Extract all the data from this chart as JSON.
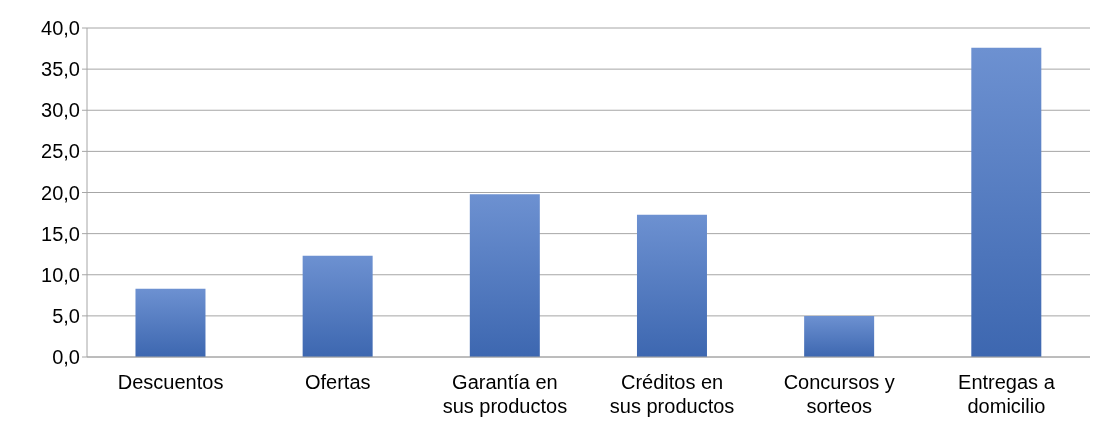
{
  "chart_data": {
    "type": "bar",
    "categories": [
      "Descuentos",
      "Ofertas",
      "Garantía en sus productos",
      "Créditos en sus productos",
      "Concursos y sorteos",
      "Entregas a domicilio"
    ],
    "values": [
      8.3,
      12.3,
      19.8,
      17.3,
      5.0,
      37.6
    ],
    "color": "#4472c4",
    "ylim": [
      0,
      40
    ],
    "yticks": [
      {
        "value": 0,
        "label": "0,0"
      },
      {
        "value": 5,
        "label": "5,0"
      },
      {
        "value": 10,
        "label": "10,0"
      },
      {
        "value": 15,
        "label": "15,0"
      },
      {
        "value": 20,
        "label": "20,0"
      },
      {
        "value": 25,
        "label": "25,0"
      },
      {
        "value": 30,
        "label": "30,0"
      },
      {
        "value": 35,
        "label": "35,0"
      },
      {
        "value": 40,
        "label": "40,0"
      }
    ],
    "grid": "y"
  }
}
